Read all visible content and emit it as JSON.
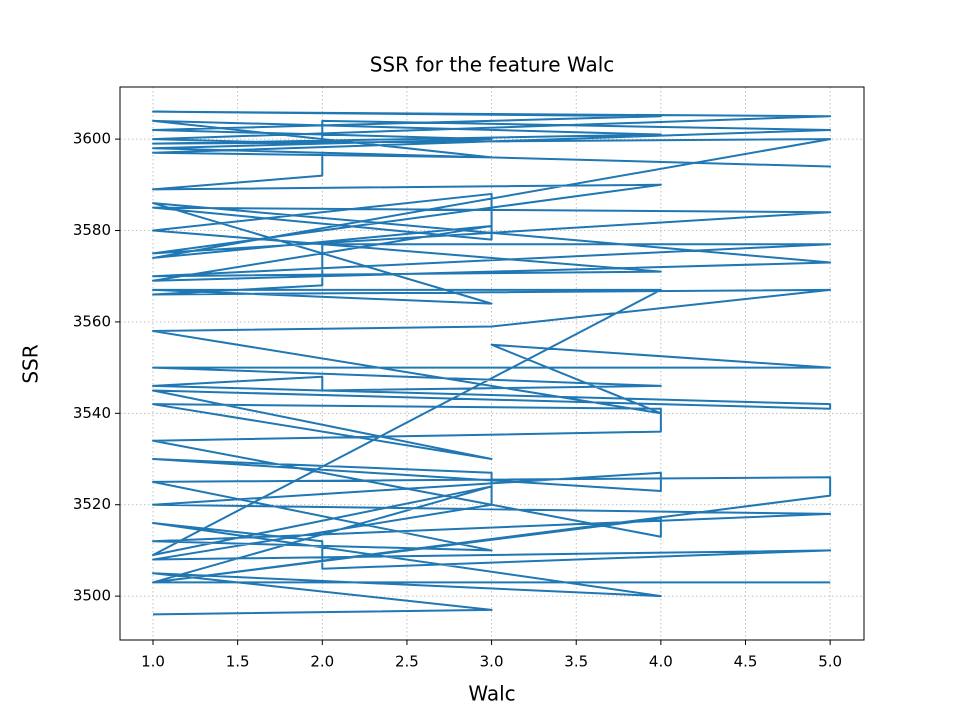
{
  "chart_data": {
    "type": "line",
    "title": "SSR for the feature Walc",
    "xlabel": "Walc",
    "ylabel": "SSR",
    "color": "#1f77b4",
    "grid": true,
    "xlim": [
      0.805,
      5.2
    ],
    "ylim": [
      3490.4,
      3611.4
    ],
    "xticks": [
      {
        "value": 1,
        "label": "1.0"
      },
      {
        "value": 1.5,
        "label": "1.5"
      },
      {
        "value": 2,
        "label": "2.0"
      },
      {
        "value": 2.5,
        "label": "2.5"
      },
      {
        "value": 3,
        "label": "3.0"
      },
      {
        "value": 3.5,
        "label": "3.5"
      },
      {
        "value": 4,
        "label": "4.0"
      },
      {
        "value": 4.5,
        "label": "4.5"
      },
      {
        "value": 5,
        "label": "5.0"
      }
    ],
    "yticks": [
      3500,
      3520,
      3540,
      3560,
      3580,
      3600
    ],
    "x": [
      1,
      3,
      1,
      4,
      1,
      2,
      2,
      5,
      1,
      3,
      3,
      1,
      4,
      4,
      1,
      5,
      1,
      3,
      1,
      5,
      5,
      1,
      4,
      4,
      1,
      4,
      4,
      1,
      3,
      1,
      5,
      5,
      1,
      2,
      2,
      4,
      1,
      5,
      3,
      4,
      1,
      3,
      5,
      1,
      2,
      2,
      5,
      1,
      4,
      1,
      3,
      3,
      1,
      5,
      1,
      4,
      1,
      2,
      2,
      5,
      1,
      3,
      1,
      4,
      1,
      5,
      1,
      2,
      2,
      5,
      1,
      3,
      1,
      4,
      1,
      5,
      1,
      3,
      1,
      5,
      1,
      3,
      1,
      4,
      1,
      3,
      1,
      5
    ],
    "values": [
      3496,
      3497,
      3505,
      3500,
      3516,
      3512,
      3506,
      3510,
      3508,
      3520,
      3527,
      3530,
      3523,
      3527,
      3520,
      3518,
      3512,
      3510,
      3525,
      3526,
      3522,
      3503,
      3517,
      3513,
      3534,
      3536,
      3541,
      3542,
      3530,
      3545,
      3541,
      3542,
      3546,
      3548,
      3545,
      3546,
      3550,
      3550,
      3555,
      3540,
      3558,
      3559,
      3567,
      3566,
      3568,
      3577,
      3577,
      3570,
      3571,
      3580,
      3588,
      3578,
      3585,
      3584,
      3575,
      3590,
      3589,
      3592,
      3597,
      3594,
      3598,
      3600,
      3602,
      3605,
      3606,
      3605,
      3600,
      3599,
      3604,
      3602,
      3597,
      3596,
      3604,
      3601,
      3599,
      3600,
      3574,
      3581,
      3569,
      3573,
      3586,
      3564,
      3567,
      3567,
      3509,
      3524,
      3503,
      3503
    ]
  }
}
